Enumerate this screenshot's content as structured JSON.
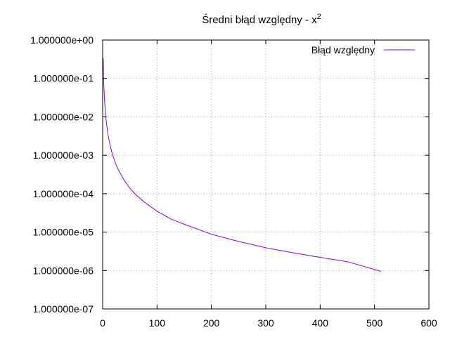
{
  "chart_data": {
    "type": "line",
    "title": "Średni błąd względny - x",
    "title_superscript": "2",
    "xlabel": "",
    "ylabel": "",
    "xlim": [
      0,
      600
    ],
    "ylim": [
      1e-07,
      1
    ],
    "y_scale": "log",
    "x_ticks": [
      0,
      100,
      200,
      300,
      400,
      500,
      600
    ],
    "x_tick_labels": [
      "0",
      "100",
      "200",
      "300",
      "400",
      "500",
      "600"
    ],
    "y_ticks": [
      1,
      0.1,
      0.01,
      0.001,
      0.0001,
      1e-05,
      1e-06,
      1e-07
    ],
    "y_tick_labels": [
      "1.000000e+00",
      "1.000000e-01",
      "1.000000e-02",
      "1.000000e-03",
      "1.000000e-04",
      "1.000000e-05",
      "1.000000e-06",
      "1.000000e-07"
    ],
    "grid": true,
    "legend_position": "top-right",
    "series": [
      {
        "name": "Błąd względny",
        "color": "#9400d3",
        "x": [
          1,
          2,
          3,
          4,
          5,
          6,
          8,
          10,
          12,
          15,
          20,
          25,
          30,
          40,
          50,
          60,
          75,
          100,
          125,
          150,
          200,
          250,
          300,
          350,
          400,
          450,
          512
        ],
        "y": [
          0.33,
          0.08,
          0.037,
          0.021,
          0.0135,
          0.0094,
          0.0053,
          0.0034,
          0.0024,
          0.00152,
          0.00086,
          0.00055,
          0.00039,
          0.00022,
          0.00014,
          9.7e-05,
          6.3e-05,
          3.5e-05,
          2.2e-05,
          1.6e-05,
          8.8e-06,
          5.7e-06,
          3.9e-06,
          2.9e-06,
          2.2e-06,
          1.7e-06,
          9.5e-07
        ]
      }
    ]
  }
}
